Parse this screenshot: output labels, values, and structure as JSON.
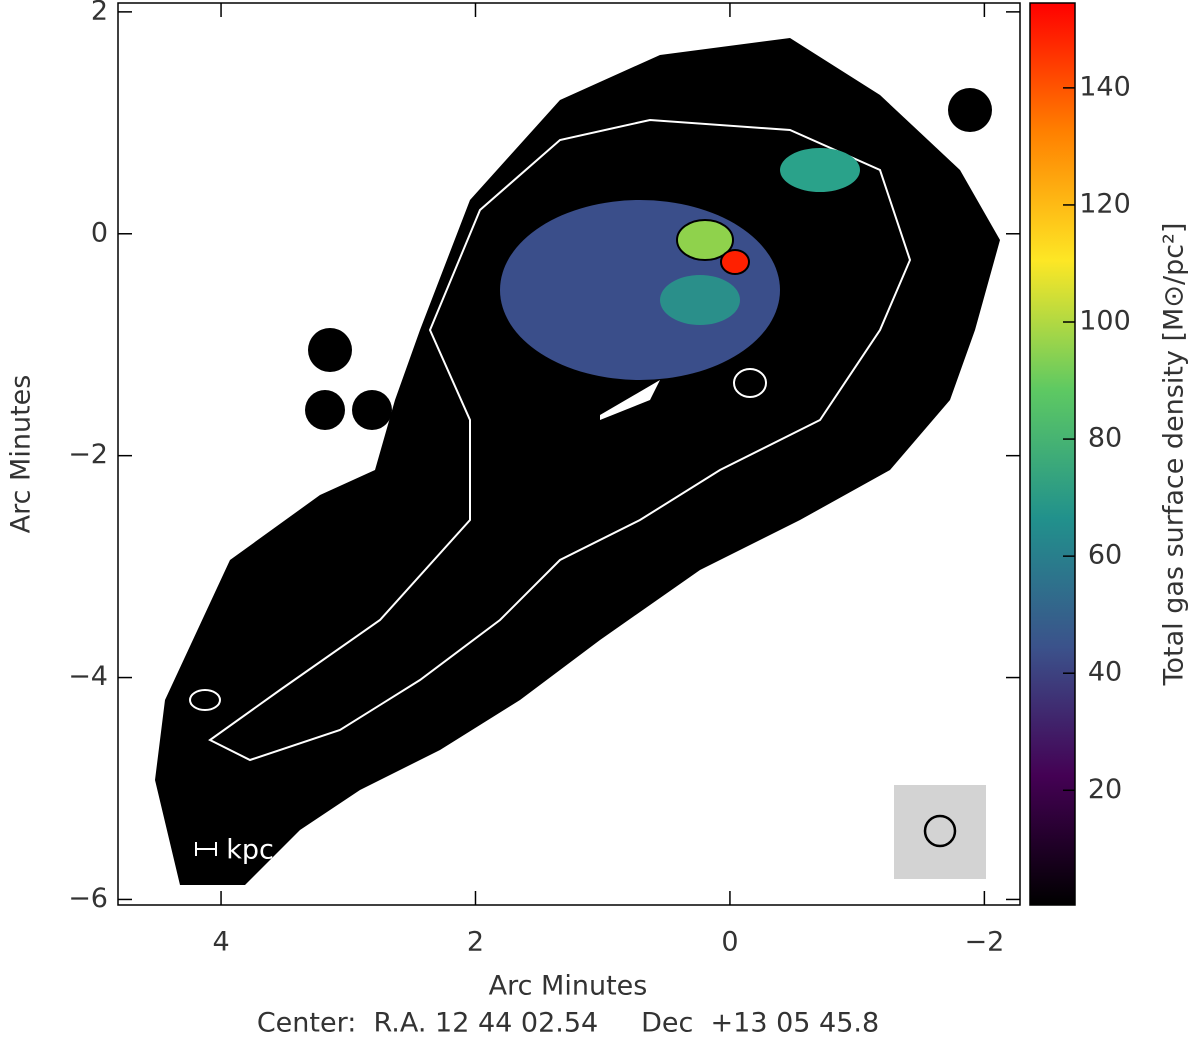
{
  "chart_data": {
    "type": "image",
    "xlabel": "Arc Minutes",
    "ylabel": "Arc Minutes",
    "xlim": [
      4.81,
      -2.28
    ],
    "ylim": [
      -6.05,
      2.08
    ],
    "xticks": [
      4,
      2,
      0,
      {
        "value": -2,
        "label": "−2"
      }
    ],
    "yticks": [
      2,
      0,
      {
        "value": -2,
        "label": "−2"
      },
      {
        "value": -4,
        "label": "−4"
      },
      {
        "value": -6,
        "label": "−6"
      }
    ],
    "colorbar": {
      "label": "Total gas surface density [M⊙/pc²]",
      "clim": [
        0.4,
        154.5
      ],
      "ticks": [
        20,
        40,
        60,
        80,
        100,
        120,
        140
      ],
      "colormap": [
        "#000000",
        "#440154",
        "#3b528b",
        "#21918c",
        "#5ec962",
        "#fde725",
        "#ff8000",
        "#ff0000"
      ]
    },
    "scalebar_label": "kpc",
    "footer": "Center:  R.A. 12 44 02.54     Dec  +13 05 45.8"
  }
}
